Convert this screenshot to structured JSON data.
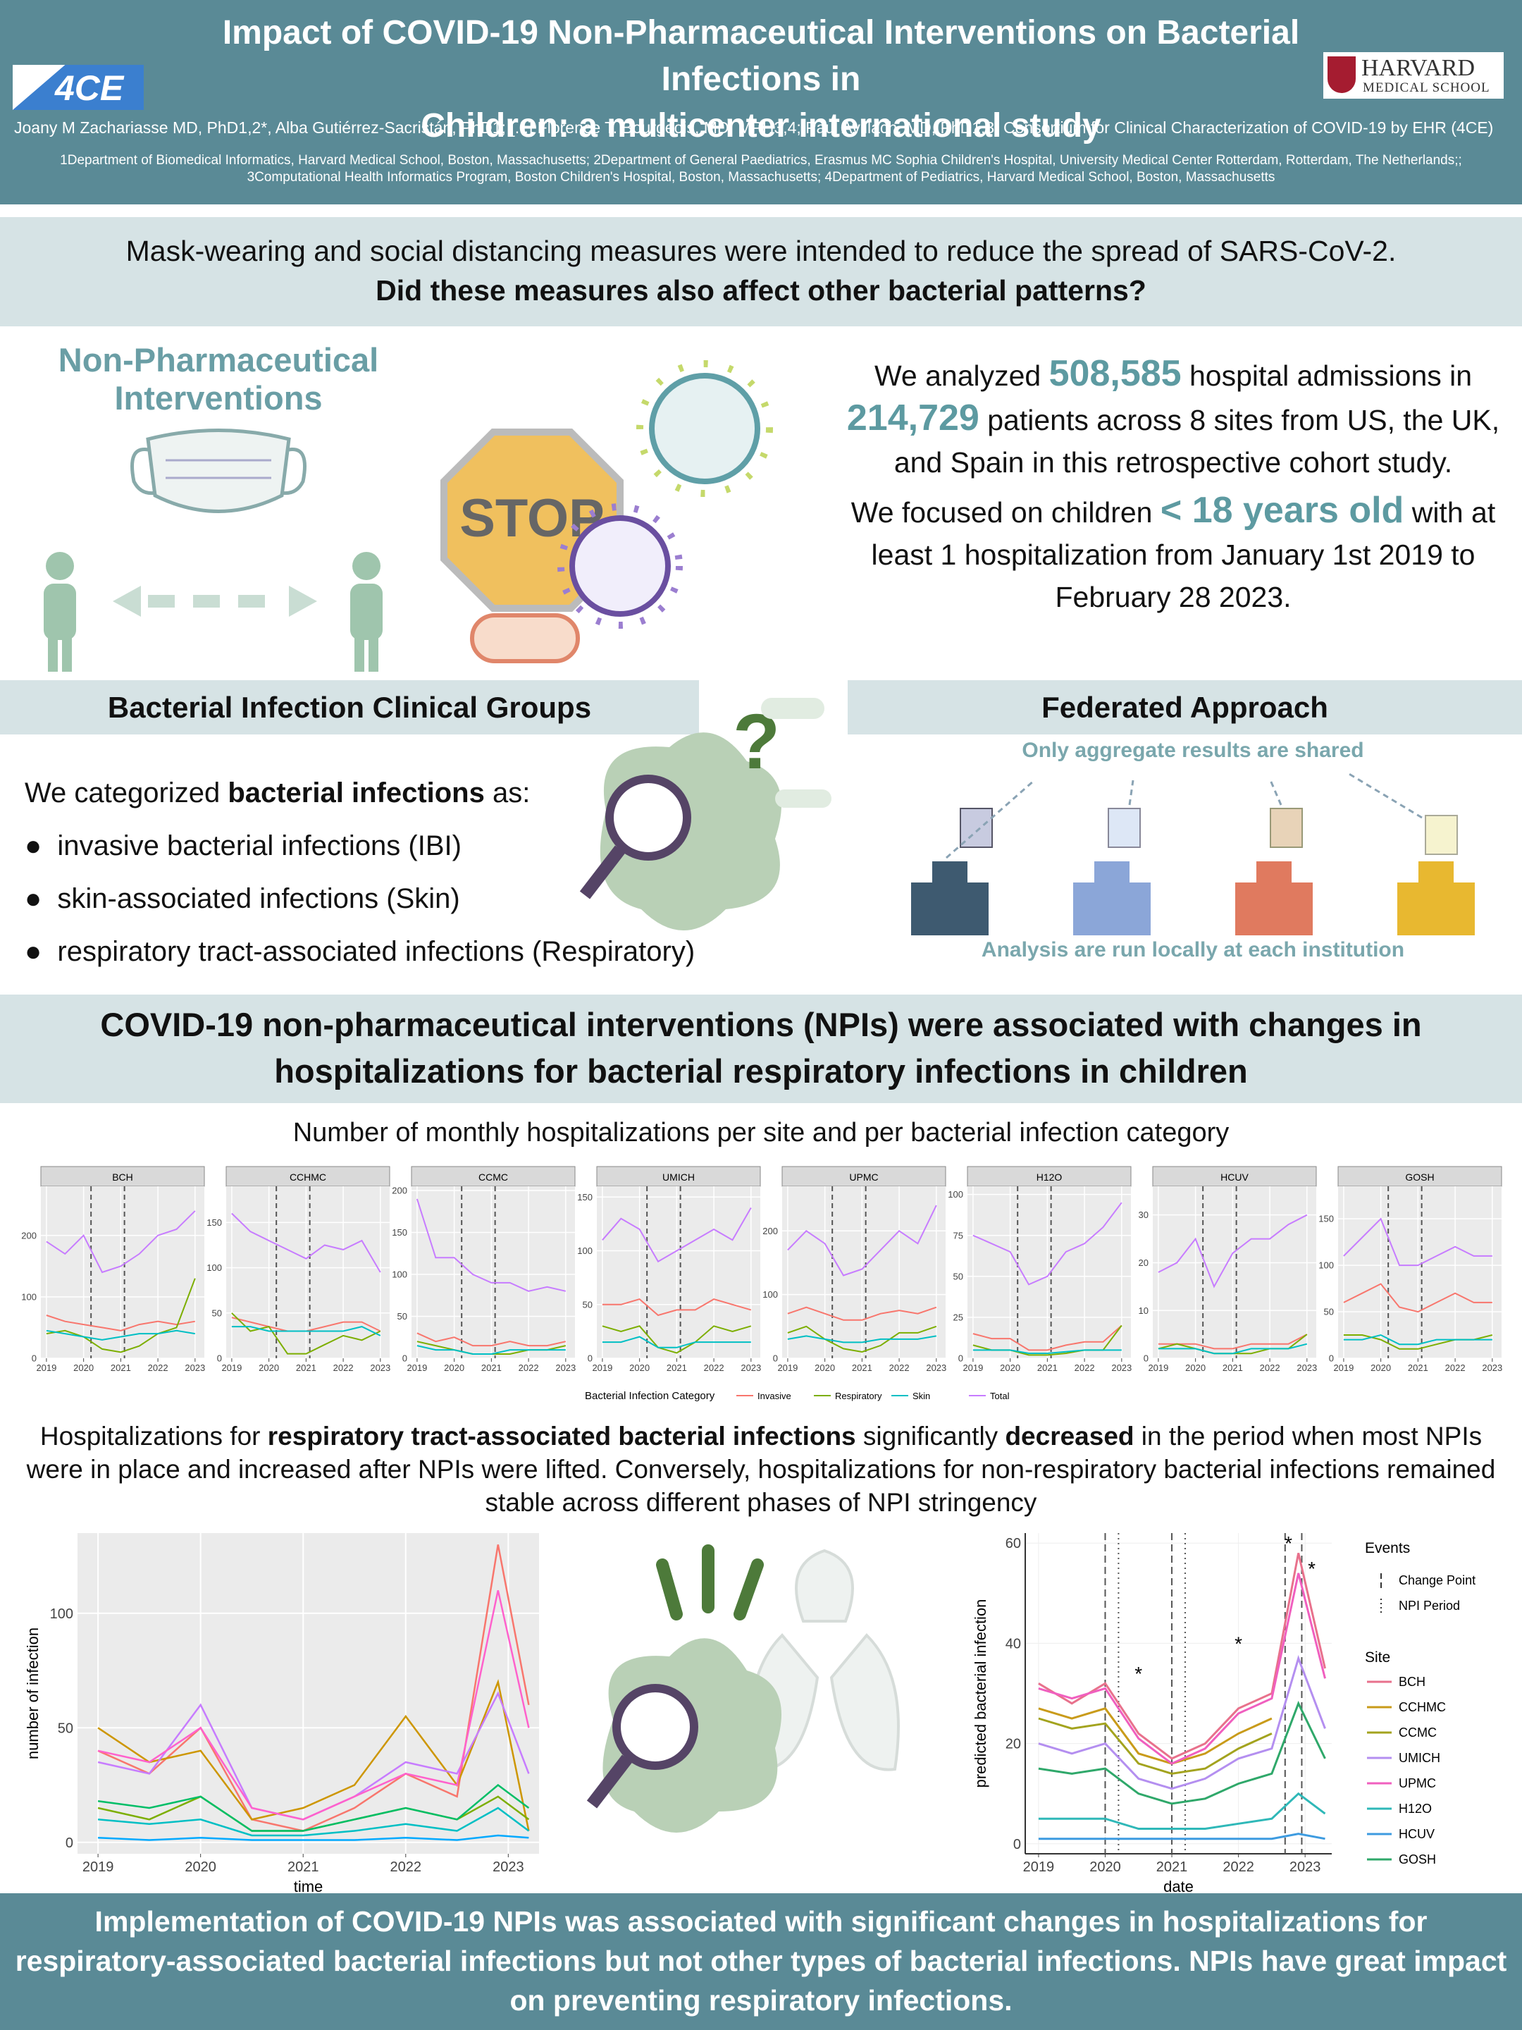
{
  "header": {
    "title_line1": "Impact of COVID-19 Non-Pharmaceutical Interventions on Bacterial Infections in",
    "title_line2": "Children: a multicenter international study",
    "logo_left": "4CE",
    "logo_right_top": "HARVARD",
    "logo_right_bottom": "MEDICAL SCHOOL",
    "authors": "Joany M Zachariasse MD, PhD1,2*, Alba Gutiérrez-Sacristán, PhD1; [...] Florence T. Bourgeois, MD, MPH3,4; Paul Avillach, MD, PhD1,3; Consortium for Clinical Characterization of COVID-19 by EHR (4CE)",
    "affiliations_line1": "1Department of Biomedical Informatics, Harvard Medical School, Boston, Massachusetts; 2Department of General Paediatrics, Erasmus MC Sophia Children's Hospital, University Medical Center Rotterdam, Rotterdam, The Netherlands;;",
    "affiliations_line2": "3Computational Health Informatics Program, Boston Children's Hospital, Boston, Massachusetts; 4Department of Pediatrics, Harvard Medical School, Boston, Massachusetts"
  },
  "question": {
    "line1": "Mask-wearing and social distancing measures were intended to reduce the spread of SARS-CoV-2.",
    "line2": "Did these measures also affect other bacterial patterns?"
  },
  "intro": {
    "npi_label": "Non-Pharmaceutical Interventions",
    "stop": "STOP",
    "study": [
      "We analyzed ",
      "508,585",
      " hospital admissions in ",
      "214,729",
      " patients across 8 sites from US, the UK, and Spain in this retrospective cohort study."
    ],
    "focus": [
      "We focused on children ",
      "< 18 years old",
      " with at least 1 hospitalization from January 1st 2019 to February 28 2023."
    ]
  },
  "groups": {
    "heading": "Bacterial Infection Clinical Groups",
    "intro": [
      "We categorized ",
      "bacterial infections",
      " as:"
    ],
    "items": [
      "invasive bacterial infections (IBI)",
      "skin-associated infections (Skin)",
      "respiratory tract-associated infections (Respiratory)"
    ]
  },
  "federated": {
    "heading": "Federated Approach",
    "top_note": "Only aggregate results are shared",
    "bottom_note": "Analysis are run locally at each institution"
  },
  "finding": {
    "line1": "COVID-19 non-pharmaceutical interventions (NPIs) were associated with changes in",
    "line2": "hospitalizations for bacterial respiratory infections in children"
  },
  "result_text": [
    "Hospitalizations for ",
    "respiratory tract-associated bacterial infections",
    " significantly ",
    "decreased",
    " in the period when most NPIs were in place and increased after NPIs were lifted. Conversely, hospitalizations for non-respiratory bacterial infections remained stable across different phases of NPI stringency"
  ],
  "conclusion": "Implementation of COVID-19 NPIs was associated with significant changes in hospitalizations for respiratory-associated bacterial infections but not other types of bacterial infections. NPIs have great impact on preventing respiratory infections.",
  "chart_data": [
    {
      "type": "line",
      "title": "Number of monthly hospitalizations per site and per bacterial infection category",
      "x": [
        2019,
        2019.5,
        2020,
        2020.5,
        2021,
        2021.5,
        2022,
        2022.5,
        2023
      ],
      "xlim": [
        2018.85,
        2023.25
      ],
      "xticks": [
        2019,
        2020,
        2021,
        2022,
        2023
      ],
      "vlines": [
        2020.2,
        2021.1
      ],
      "legend_title": "Bacterial Infection Category",
      "series": [
        {
          "name": "Invasive",
          "color": "#f8766d"
        },
        {
          "name": "Respiratory",
          "color": "#7cae00"
        },
        {
          "name": "Skin",
          "color": "#00bfc4"
        },
        {
          "name": "Total",
          "color": "#c77cff"
        }
      ],
      "panels": [
        {
          "name": "BCH",
          "ylim": [
            0,
            280
          ],
          "yticks": [
            0,
            100,
            200
          ],
          "values": [
            [
              70,
              60,
              55,
              50,
              45,
              55,
              60,
              55,
              60
            ],
            [
              40,
              45,
              35,
              15,
              10,
              20,
              40,
              50,
              130
            ],
            [
              45,
              40,
              35,
              30,
              35,
              40,
              40,
              45,
              40
            ],
            [
              190,
              170,
              200,
              140,
              150,
              170,
              200,
              210,
              240
            ]
          ]
        },
        {
          "name": "CCHMC",
          "ylim": [
            0,
            190
          ],
          "yticks": [
            0,
            50,
            100,
            150
          ],
          "values": [
            [
              45,
              40,
              35,
              30,
              30,
              35,
              40,
              40,
              30
            ],
            [
              50,
              30,
              35,
              5,
              5,
              15,
              25,
              20,
              30
            ],
            [
              35,
              35,
              30,
              30,
              30,
              30,
              30,
              35,
              25
            ],
            [
              160,
              140,
              130,
              120,
              110,
              125,
              120,
              130,
              95
            ]
          ]
        },
        {
          "name": "CCMC",
          "ylim": [
            0,
            205
          ],
          "yticks": [
            0,
            50,
            100,
            150,
            200
          ],
          "values": [
            [
              30,
              20,
              25,
              15,
              15,
              20,
              15,
              15,
              20
            ],
            [
              20,
              15,
              10,
              5,
              5,
              5,
              10,
              10,
              15
            ],
            [
              15,
              10,
              10,
              5,
              5,
              10,
              10,
              10,
              10
            ],
            [
              190,
              120,
              120,
              100,
              90,
              90,
              80,
              85,
              80
            ]
          ]
        },
        {
          "name": "UMICH",
          "ylim": [
            0,
            160
          ],
          "yticks": [
            0,
            50,
            100,
            150
          ],
          "values": [
            [
              50,
              50,
              55,
              40,
              45,
              45,
              55,
              50,
              45
            ],
            [
              30,
              25,
              30,
              10,
              5,
              15,
              30,
              25,
              30
            ],
            [
              15,
              15,
              20,
              10,
              10,
              15,
              15,
              15,
              15
            ],
            [
              110,
              130,
              120,
              90,
              100,
              110,
              120,
              110,
              140
            ]
          ]
        },
        {
          "name": "UPMC",
          "ylim": [
            0,
            270
          ],
          "yticks": [
            0,
            100,
            200
          ],
          "values": [
            [
              70,
              80,
              70,
              60,
              60,
              70,
              75,
              70,
              80
            ],
            [
              40,
              50,
              30,
              15,
              10,
              20,
              40,
              40,
              50
            ],
            [
              30,
              35,
              30,
              25,
              25,
              30,
              30,
              30,
              35
            ],
            [
              170,
              200,
              180,
              130,
              140,
              170,
              200,
              180,
              240
            ]
          ]
        },
        {
          "name": "H12O",
          "ylim": [
            0,
            105
          ],
          "yticks": [
            0,
            25,
            50,
            75,
            100
          ],
          "values": [
            [
              15,
              12,
              12,
              5,
              5,
              8,
              10,
              10,
              20
            ],
            [
              8,
              5,
              5,
              2,
              2,
              3,
              5,
              5,
              20
            ],
            [
              5,
              5,
              5,
              3,
              3,
              4,
              5,
              5,
              5
            ],
            [
              75,
              70,
              65,
              45,
              50,
              65,
              70,
              80,
              95
            ]
          ]
        },
        {
          "name": "HCUV",
          "ylim": [
            0,
            36
          ],
          "yticks": [
            0,
            10,
            20,
            30
          ],
          "values": [
            [
              3,
              3,
              3,
              2,
              2,
              3,
              3,
              3,
              5
            ],
            [
              2,
              3,
              2,
              1,
              1,
              1,
              2,
              2,
              5
            ],
            [
              2,
              2,
              2,
              1,
              1,
              2,
              2,
              2,
              3
            ],
            [
              18,
              20,
              25,
              15,
              22,
              25,
              25,
              28,
              30
            ]
          ]
        },
        {
          "name": "GOSH",
          "ylim": [
            0,
            185
          ],
          "yticks": [
            0,
            50,
            100,
            150
          ],
          "values": [
            [
              60,
              70,
              80,
              55,
              50,
              60,
              70,
              60,
              60
            ],
            [
              25,
              25,
              20,
              10,
              10,
              15,
              20,
              20,
              25
            ],
            [
              20,
              20,
              25,
              15,
              15,
              20,
              20,
              20,
              20
            ],
            [
              110,
              130,
              150,
              100,
              100,
              110,
              120,
              110,
              110
            ]
          ]
        }
      ]
    },
    {
      "type": "line",
      "xlabel": "time",
      "ylabel": "number of infection",
      "x": [
        2019,
        2019.5,
        2020,
        2020.5,
        2021,
        2021.5,
        2022,
        2022.5,
        2022.9,
        2023.2
      ],
      "xlim": [
        2018.8,
        2023.3
      ],
      "ylim": [
        -5,
        135
      ],
      "xticks": [
        2019,
        2020,
        2021,
        2022,
        2023
      ],
      "yticks": [
        0,
        50,
        100
      ],
      "series": [
        {
          "color": "#f8766d",
          "values": [
            40,
            30,
            50,
            10,
            5,
            15,
            30,
            20,
            130,
            60
          ]
        },
        {
          "color": "#cd9600",
          "values": [
            50,
            35,
            40,
            10,
            15,
            25,
            55,
            25,
            70,
            5
          ]
        },
        {
          "color": "#7cae00",
          "values": [
            15,
            10,
            20,
            5,
            5,
            10,
            15,
            10,
            20,
            10
          ]
        },
        {
          "color": "#00be67",
          "values": [
            18,
            15,
            20,
            5,
            5,
            10,
            15,
            10,
            25,
            15
          ]
        },
        {
          "color": "#00bfc4",
          "values": [
            10,
            8,
            10,
            3,
            3,
            5,
            8,
            5,
            15,
            5
          ]
        },
        {
          "color": "#00a9ff",
          "values": [
            2,
            1,
            2,
            1,
            1,
            1,
            2,
            1,
            3,
            2
          ]
        },
        {
          "color": "#c77cff",
          "values": [
            35,
            30,
            60,
            15,
            10,
            20,
            35,
            30,
            65,
            30
          ]
        },
        {
          "color": "#ff61cc",
          "values": [
            40,
            35,
            50,
            15,
            10,
            20,
            30,
            25,
            110,
            50
          ]
        }
      ]
    },
    {
      "type": "line",
      "xlabel": "date",
      "ylabel": "predicted bacterial infection",
      "x": [
        2019,
        2019.5,
        2020,
        2020.5,
        2021,
        2021.5,
        2022,
        2022.5,
        2022.9,
        2023.3
      ],
      "xlim": [
        2018.8,
        2023.4
      ],
      "ylim": [
        -2,
        62
      ],
      "xticks": [
        2019,
        2020,
        2021,
        2022,
        2023
      ],
      "yticks": [
        0,
        20,
        40,
        60
      ],
      "events_title": "Events",
      "events": [
        "Change Point",
        "NPI Period"
      ],
      "site_title": "Site",
      "change_points": [
        2020,
        2021,
        2022.7,
        2022.95
      ],
      "npi_period": [
        2020.2,
        2021.2
      ],
      "annotations": [
        {
          "text": "*",
          "x": 2020.5,
          "y": 34
        },
        {
          "text": "*",
          "x": 2022,
          "y": 40
        },
        {
          "text": "*",
          "x": 2022.75,
          "y": 60
        },
        {
          "text": "*",
          "x": 2023.1,
          "y": 55
        }
      ],
      "series": [
        {
          "name": "BCH",
          "color": "#e8718c",
          "values": [
            32,
            28,
            32,
            22,
            17,
            20,
            27,
            30,
            58,
            35
          ]
        },
        {
          "name": "CCHMC",
          "color": "#c99b1a",
          "values": [
            27,
            25,
            27,
            18,
            16,
            18,
            22,
            25,
            null,
            null
          ]
        },
        {
          "name": "CCMC",
          "color": "#a3a31e",
          "values": [
            25,
            23,
            24,
            16,
            14,
            15,
            19,
            22,
            null,
            null
          ]
        },
        {
          "name": "UMICH",
          "color": "#b48ff0",
          "values": [
            20,
            18,
            20,
            13,
            11,
            13,
            17,
            19,
            37,
            23
          ]
        },
        {
          "name": "UPMC",
          "color": "#f05fbf",
          "values": [
            31,
            29,
            31,
            21,
            16,
            19,
            26,
            29,
            54,
            33
          ]
        },
        {
          "name": "H12O",
          "color": "#2fb8b8",
          "values": [
            5,
            5,
            5,
            3,
            3,
            3,
            4,
            5,
            10,
            6
          ]
        },
        {
          "name": "HCUV",
          "color": "#3d9be0",
          "values": [
            1,
            1,
            1,
            1,
            1,
            1,
            1,
            1,
            2,
            1
          ]
        },
        {
          "name": "GOSH",
          "color": "#2fa86a",
          "values": [
            15,
            14,
            15,
            10,
            8,
            9,
            12,
            14,
            28,
            17
          ]
        }
      ]
    }
  ]
}
